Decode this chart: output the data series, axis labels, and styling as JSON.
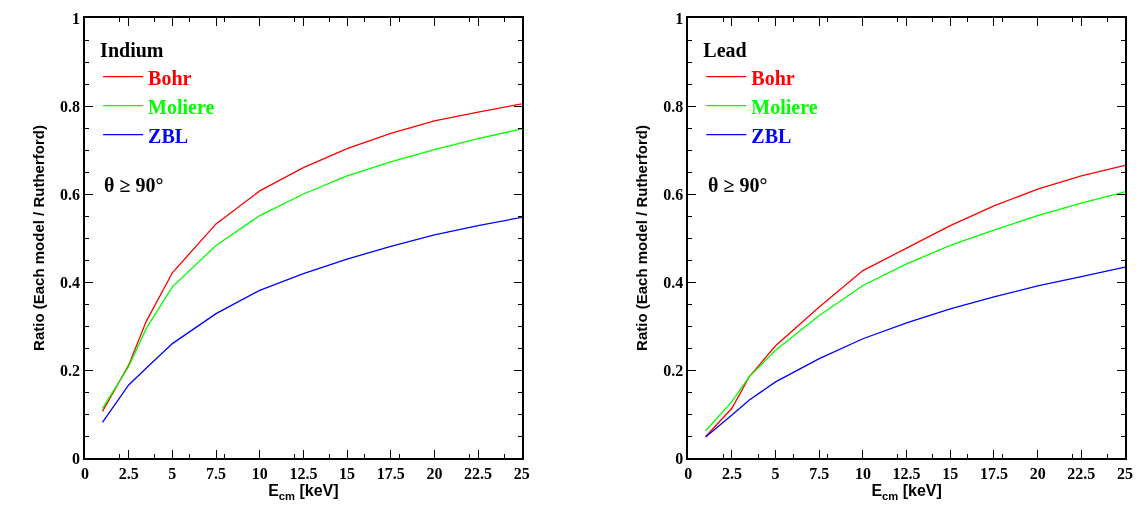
{
  "chart_data": [
    {
      "type": "line",
      "legend_title": "Indium",
      "xlabel": "E$_{cm}$ [keV]",
      "ylabel": "Ratio (Each model / Rutherford)",
      "annotations": [
        "θ ≥ 90°"
      ],
      "xlim": [
        0,
        25
      ],
      "ylim": [
        0,
        1
      ],
      "xticks": [
        0,
        2.5,
        5,
        7.5,
        10,
        12.5,
        15,
        17.5,
        20,
        22.5,
        25
      ],
      "yticks": [
        0,
        0.2,
        0.4,
        0.6,
        0.8,
        1
      ],
      "legend": "top left",
      "marker": "none",
      "line_style": "solid",
      "x": [
        1,
        2.5,
        3.5,
        5,
        7.5,
        10,
        12.5,
        15,
        17.5,
        20,
        22.5,
        25
      ],
      "series": [
        {
          "name": "Bohr",
          "color": "#ff0000",
          "values": [
            0.106,
            0.211,
            0.31,
            0.421,
            0.532,
            0.607,
            0.66,
            0.703,
            0.738,
            0.766,
            0.786,
            0.805
          ]
        },
        {
          "name": "Moliere",
          "color": "#00ff00",
          "values": [
            0.113,
            0.208,
            0.294,
            0.389,
            0.483,
            0.551,
            0.6,
            0.641,
            0.673,
            0.701,
            0.726,
            0.748
          ]
        },
        {
          "name": "ZBL",
          "color": "#0000ff",
          "values": [
            0.081,
            0.166,
            0.204,
            0.26,
            0.328,
            0.381,
            0.419,
            0.452,
            0.481,
            0.507,
            0.528,
            0.547
          ]
        }
      ]
    },
    {
      "type": "line",
      "legend_title": "Lead",
      "xlabel": "E$_{cm}$ [keV]",
      "ylabel": "Ratio (Each model / Rutherford)",
      "annotations": [
        "θ ≥ 90°"
      ],
      "xlim": [
        0,
        25
      ],
      "ylim": [
        0,
        1
      ],
      "xticks": [
        0,
        2.5,
        5,
        7.5,
        10,
        12.5,
        15,
        17.5,
        20,
        22.5,
        25
      ],
      "yticks": [
        0,
        0.2,
        0.4,
        0.6,
        0.8,
        1
      ],
      "legend": "top left",
      "marker": "none",
      "line_style": "solid",
      "x": [
        1,
        2.5,
        3.5,
        5,
        7.5,
        10,
        12.5,
        15,
        17.5,
        20,
        22.5,
        25
      ],
      "series": [
        {
          "name": "Bohr",
          "color": "#ff0000",
          "values": [
            0.049,
            0.113,
            0.185,
            0.255,
            0.343,
            0.426,
            0.477,
            0.528,
            0.573,
            0.611,
            0.641,
            0.665
          ]
        },
        {
          "name": "Moliere",
          "color": "#00ff00",
          "values": [
            0.062,
            0.128,
            0.185,
            0.245,
            0.324,
            0.392,
            0.441,
            0.483,
            0.518,
            0.551,
            0.579,
            0.605
          ]
        },
        {
          "name": "ZBL",
          "color": "#0000ff",
          "values": [
            0.048,
            0.098,
            0.132,
            0.173,
            0.226,
            0.271,
            0.307,
            0.339,
            0.366,
            0.391,
            0.412,
            0.434
          ]
        }
      ]
    }
  ]
}
